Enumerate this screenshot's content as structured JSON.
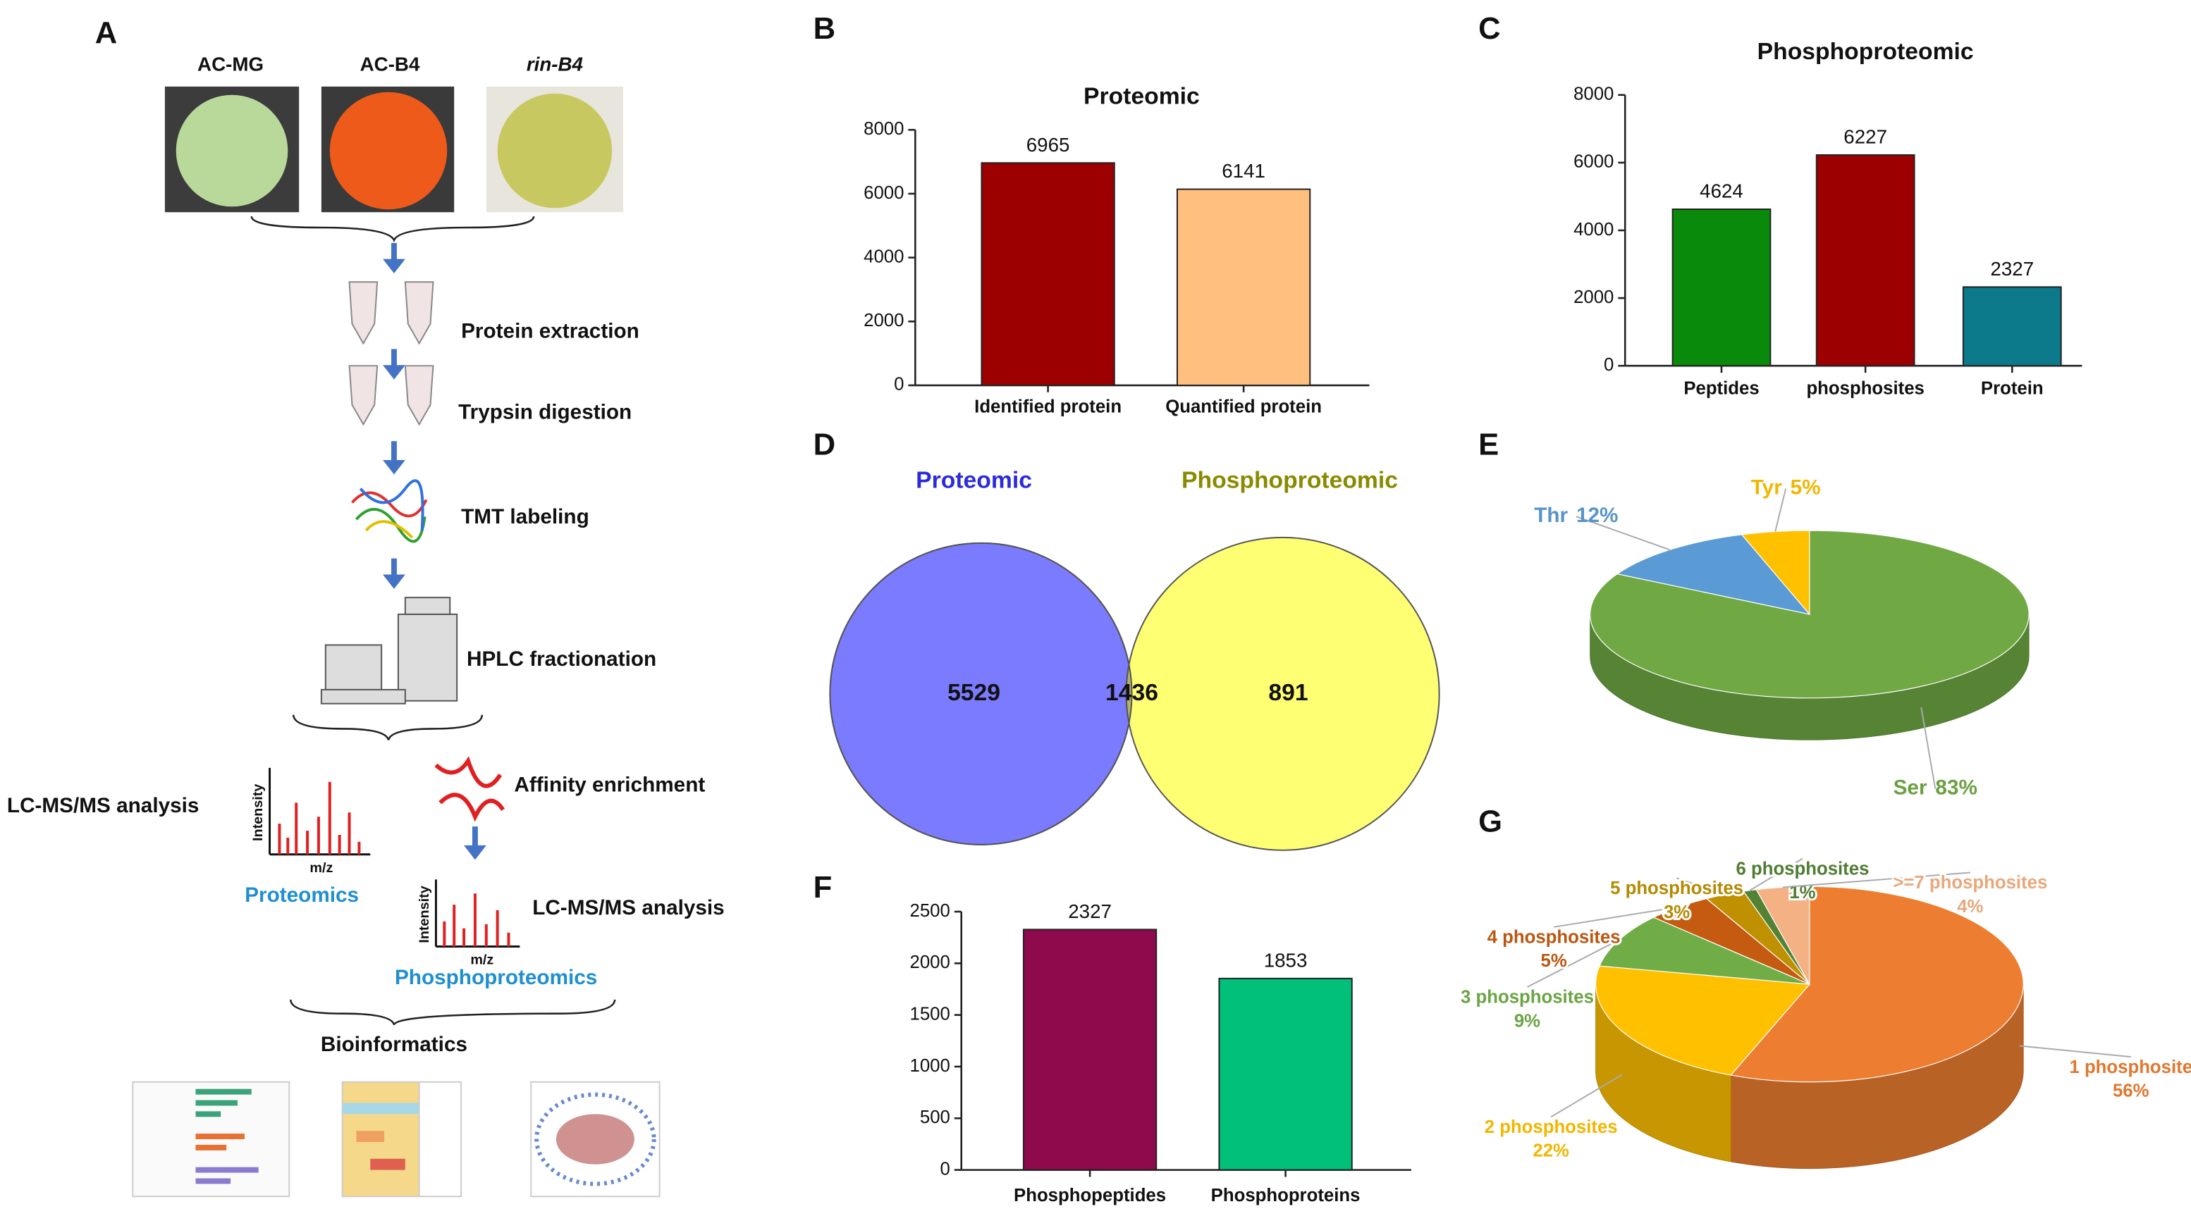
{
  "panel_labels": [
    "A",
    "B",
    "C",
    "D",
    "E",
    "F",
    "G"
  ],
  "workflow": {
    "samples": [
      "AC-MG",
      "AC-B4",
      "rin-B4"
    ],
    "steps": [
      "Protein extraction",
      "Trypsin digestion",
      "TMT labeling",
      "HPLC fractionation"
    ],
    "proteomics_branch": {
      "step": "LC-MS/MS analysis",
      "label": "Proteomics",
      "y_axis": "Intensity",
      "x_axis": "m/z"
    },
    "phospho_branch": {
      "enrichment": "Affinity enrichment",
      "step": "LC-MS/MS analysis",
      "label": "Phosphoproteomics",
      "y_axis": "Intensity",
      "x_axis": "m/z"
    },
    "final": "Bioinformatics"
  },
  "chart_data": [
    {
      "type": "bar",
      "title": "Proteomic",
      "categories": [
        "Identified protein",
        "Quantified protein"
      ],
      "values": [
        6965,
        6141
      ],
      "colors": [
        "#9c0000",
        "#ffbf7f"
      ],
      "ylim": [
        0,
        8000
      ],
      "yticks": [
        0,
        2000,
        4000,
        6000,
        8000
      ]
    },
    {
      "type": "bar",
      "title": "Phosphoproteomic",
      "categories": [
        "Peptides",
        "phosphosites",
        "Protein"
      ],
      "values": [
        4624,
        6227,
        2327
      ],
      "colors": [
        "#0a8a0a",
        "#9c0000",
        "#0d7a8c"
      ],
      "ylim": [
        0,
        8000
      ],
      "yticks": [
        0,
        2000,
        4000,
        6000,
        8000
      ]
    },
    {
      "type": "venn",
      "sets": [
        "Proteomic",
        "Phosphoproteomic"
      ],
      "set_colors": [
        "#7b7bff",
        "#ffff73"
      ],
      "label_colors": [
        "#2b2bdc",
        "#8a8a00"
      ],
      "overlap_color": "#b4b26e",
      "values": [
        5529,
        1436,
        891
      ]
    },
    {
      "type": "pie3d",
      "categories": [
        "Ser",
        "Thr",
        "Tyr"
      ],
      "values": [
        83,
        12,
        5
      ],
      "value_labels": [
        "83%",
        "12%",
        "5%"
      ],
      "colors": [
        "#70a844",
        "#5b9bd5",
        "#ffc000"
      ]
    },
    {
      "type": "bar",
      "categories": [
        "Phosphopeptides",
        "Phosphoproteins"
      ],
      "values": [
        2327,
        1853
      ],
      "colors": [
        "#8e0a4c",
        "#00c07a"
      ],
      "ylim": [
        0,
        2500
      ],
      "yticks": [
        0,
        500,
        1000,
        1500,
        2000,
        2500
      ]
    },
    {
      "type": "pie3d",
      "categories": [
        "1 phosphosite",
        "2 phosphosites",
        "3 phosphosites",
        "4 phosphosites",
        "5 phosphosites",
        "6 phosphosites",
        ">=7 phosphosites"
      ],
      "values": [
        56,
        22,
        9,
        5,
        3,
        1,
        4
      ],
      "value_labels": [
        "56%",
        "22%",
        "9%",
        "5%",
        "3%",
        "1%",
        "4%"
      ],
      "colors": [
        "#ed7d31",
        "#ffc000",
        "#70ad47",
        "#c55a11",
        "#bf9000",
        "#548235",
        "#f4b183"
      ]
    }
  ]
}
